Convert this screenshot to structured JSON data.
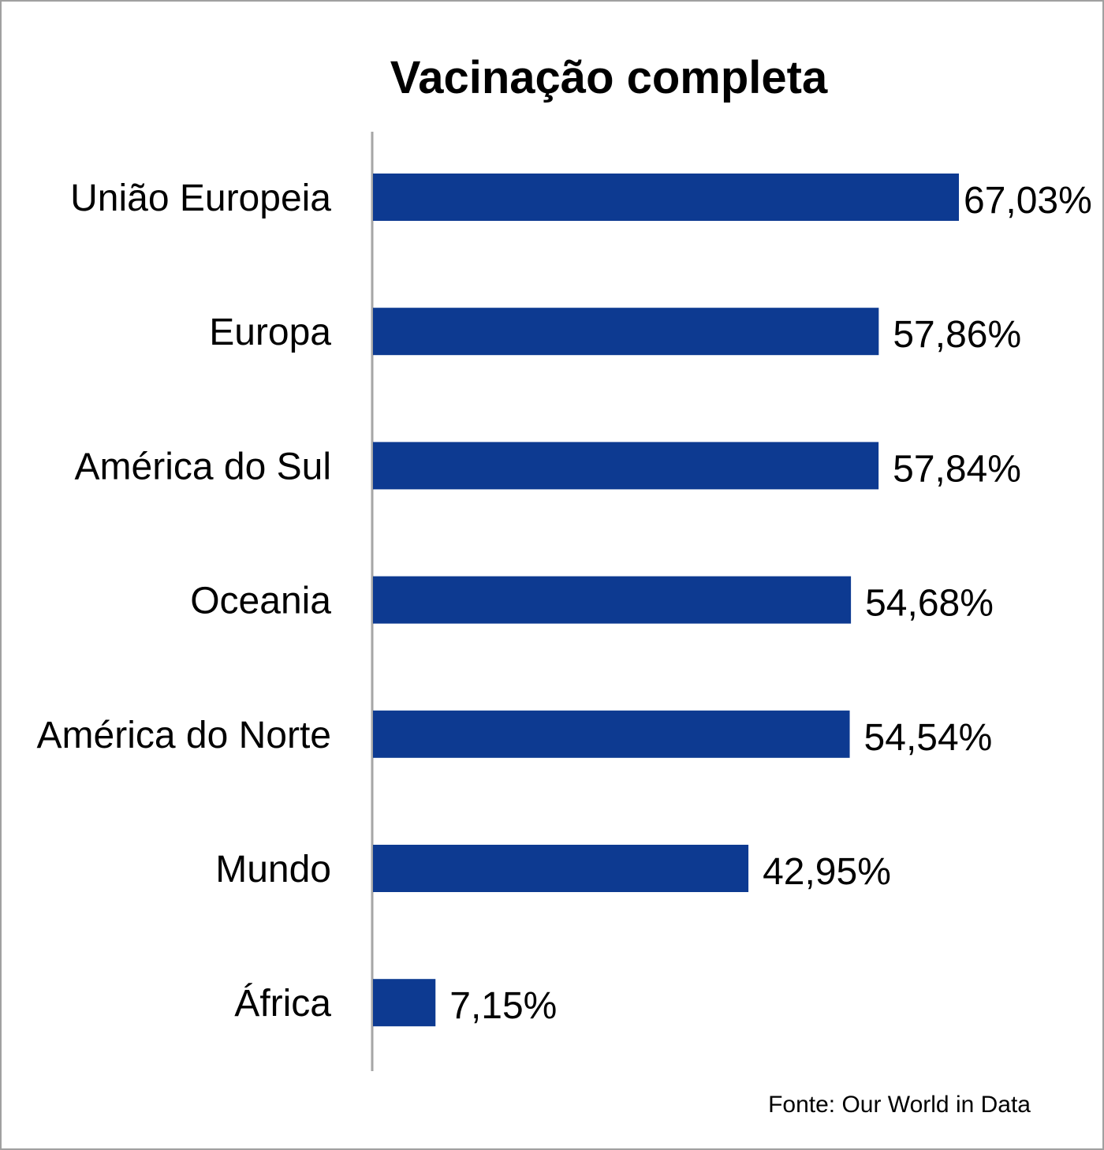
{
  "chart_data": {
    "type": "bar",
    "orientation": "horizontal",
    "title": "Vacinação completa",
    "categories": [
      "União Europeia",
      "Europa",
      "América do Sul",
      "Oceania",
      "América do Norte",
      "Mundo",
      "África"
    ],
    "values": [
      67.03,
      57.86,
      57.84,
      54.68,
      54.54,
      42.95,
      7.15
    ],
    "labels": [
      "67,03%",
      "57,86%",
      "57,84%",
      "54,68%",
      "54,54%",
      "42,95%",
      "7,15%"
    ],
    "xlabel": "",
    "ylabel": "",
    "xlim": [
      0,
      67.03
    ],
    "grid": false,
    "legend": "none",
    "bar_color": "#0d3a91",
    "source": "Fonte:  Our World in Data"
  }
}
